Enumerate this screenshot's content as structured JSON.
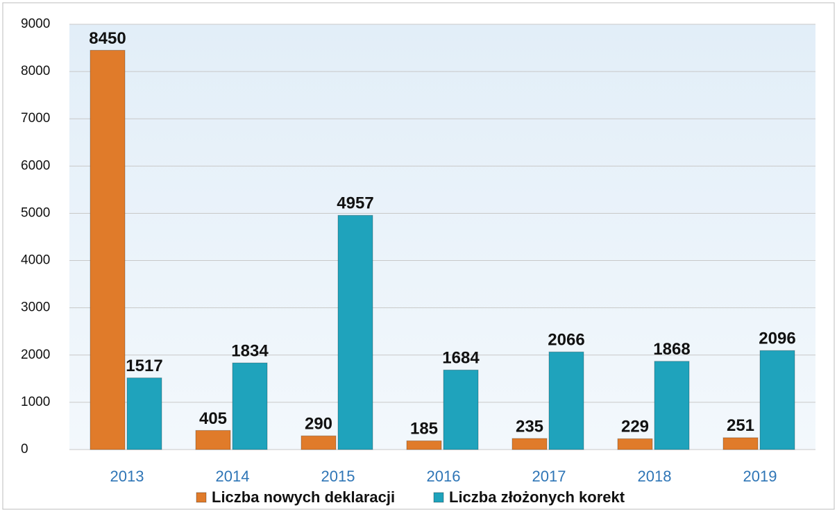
{
  "chart_data": {
    "type": "bar",
    "categories": [
      "2013",
      "2014",
      "2015",
      "2016",
      "2017",
      "2018",
      "2019"
    ],
    "series": [
      {
        "name": "Liczba nowych deklaracji",
        "color": "#e07b2a",
        "values": [
          8450,
          405,
          290,
          185,
          235,
          229,
          251
        ]
      },
      {
        "name": "Liczba złożonych korekt",
        "color": "#1fa3bc",
        "values": [
          1517,
          1834,
          4957,
          1684,
          2066,
          1868,
          2096
        ]
      }
    ],
    "ylim": [
      0,
      9000
    ],
    "yticks": [
      0,
      1000,
      2000,
      3000,
      4000,
      5000,
      6000,
      7000,
      8000,
      9000
    ],
    "grid": true,
    "legend": "bottom"
  }
}
